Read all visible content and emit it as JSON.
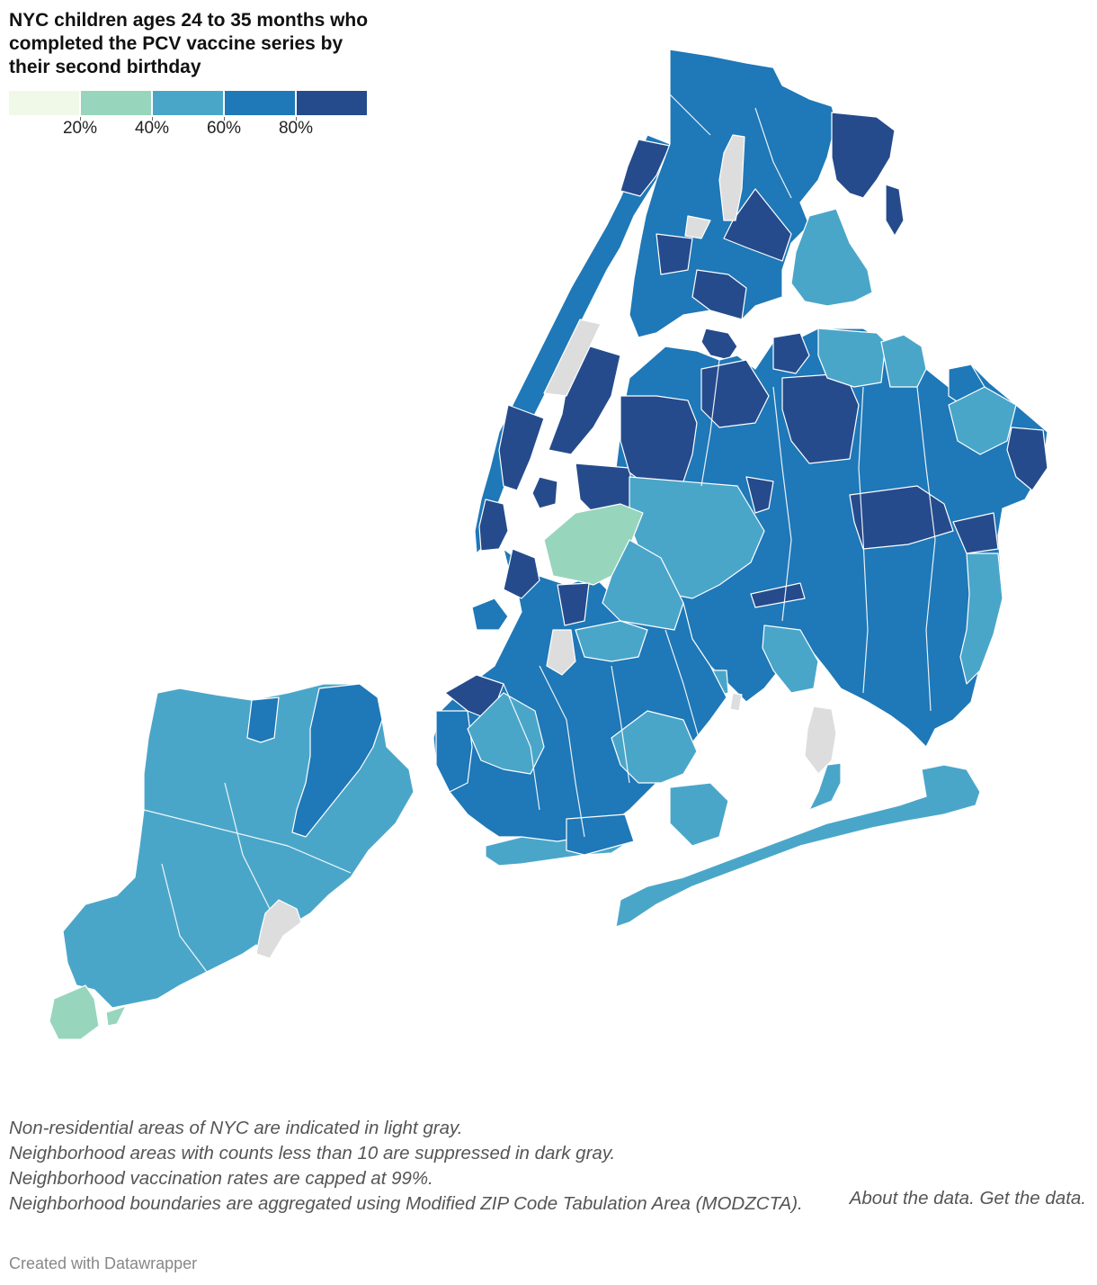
{
  "title": "NYC children ages 24 to 35 months who completed the PCV vaccine series by their second birthday",
  "legend": {
    "colors": [
      "#f0f9e8",
      "#98d5bd",
      "#4aa6c9",
      "#1f78b7",
      "#254b8c"
    ],
    "thresholds": [
      {
        "label": "20%",
        "value": 20
      },
      {
        "label": "40%",
        "value": 40
      },
      {
        "label": "60%",
        "value": 60
      },
      {
        "label": "80%",
        "value": 80
      }
    ],
    "no_data_color": "#dddddd"
  },
  "notes": [
    "Non-residential areas of NYC are indicated in light gray.",
    "Neighborhood areas with counts less than 10 are suppressed in dark gray.",
    "Neighborhood vaccination rates are capped at 99%.",
    "Neighborhood boundaries are aggregated using Modified ZIP Code Tabulation Area (MODZCTA)."
  ],
  "links": {
    "about": "About the data.",
    "get": "Get the data."
  },
  "credit": "Created with Datawrapper"
}
